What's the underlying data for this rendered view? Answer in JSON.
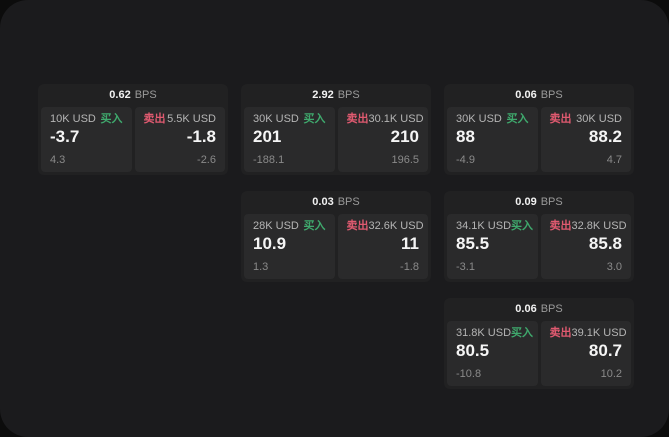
{
  "labels": {
    "bps_unit": "BPS",
    "buy": "买入",
    "sell": "卖出"
  },
  "colors": {
    "buy_green": "#3fa96d",
    "sell_red": "#e05a70",
    "panel_bg": "#1b1b1d"
  },
  "cards": [
    {
      "bps": "0.62",
      "buy": {
        "amount": "10K USD",
        "value": "-3.7",
        "delta": "4.3"
      },
      "sell": {
        "amount": "5.5K USD",
        "value": "-1.8",
        "delta": "-2.6"
      }
    },
    {
      "bps": "2.92",
      "buy": {
        "amount": "30K USD",
        "value": "201",
        "delta": "-188.1"
      },
      "sell": {
        "amount": "30.1K USD",
        "value": "210",
        "delta": "196.5"
      }
    },
    {
      "bps": "0.06",
      "buy": {
        "amount": "30K USD",
        "value": "88",
        "delta": "-4.9"
      },
      "sell": {
        "amount": "30K USD",
        "value": "88.2",
        "delta": "4.7"
      }
    },
    {
      "bps": "0.03",
      "buy": {
        "amount": "28K USD",
        "value": "10.9",
        "delta": "1.3"
      },
      "sell": {
        "amount": "32.6K USD",
        "value": "11",
        "delta": "-1.8"
      }
    },
    {
      "bps": "0.09",
      "buy": {
        "amount": "34.1K USD",
        "value": "85.5",
        "delta": "-3.1"
      },
      "sell": {
        "amount": "32.8K USD",
        "value": "85.8",
        "delta": "3.0"
      }
    },
    {
      "bps": "0.06",
      "buy": {
        "amount": "31.8K USD",
        "value": "80.5",
        "delta": "-10.8"
      },
      "sell": {
        "amount": "39.1K USD",
        "value": "80.7",
        "delta": "10.2"
      }
    }
  ]
}
